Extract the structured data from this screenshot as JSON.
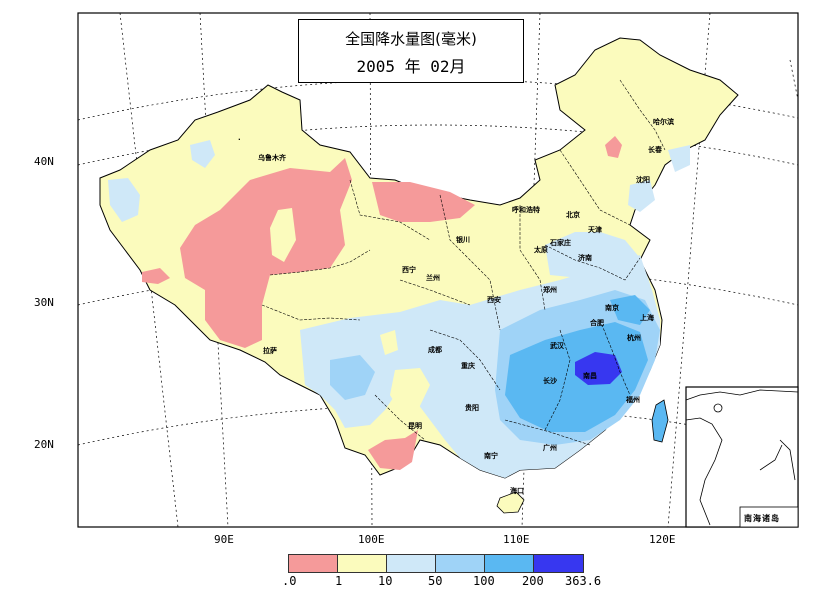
{
  "title": {
    "line1": "全国降水量图(毫米)",
    "line2": "2005 年 02月"
  },
  "latitude_labels": [
    "40N",
    "30N",
    "20N"
  ],
  "longitude_labels": [
    "90E",
    "100E",
    "110E",
    "120E"
  ],
  "inset": {
    "label": "南海诸岛"
  },
  "legend": {
    "ticks": [
      ".0",
      "1",
      "10",
      "50",
      "100",
      "200",
      "363.6"
    ],
    "colors": [
      "#f59a9a",
      "#fbfbbd",
      "#cfe8f8",
      "#9fd3f7",
      "#5ab8f2",
      "#3737f0"
    ],
    "classes": [
      "0-1",
      "1-10",
      "10-50",
      "50-100",
      "100-200",
      "200-363.6"
    ]
  },
  "map_colors": {
    "very_dry": "#f59a9a",
    "dry": "#fbfbbd",
    "light": "#cfe8f8",
    "moderate": "#9fd3f7",
    "heavy": "#5ab8f2",
    "very_heavy": "#3737f0",
    "ocean": "#ffffff"
  }
}
